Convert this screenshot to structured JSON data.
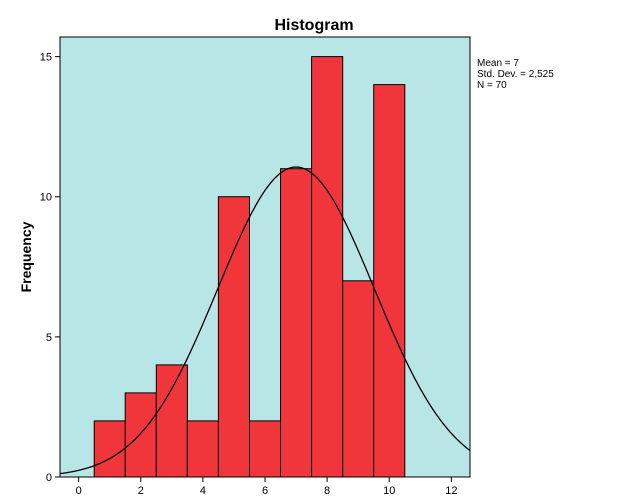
{
  "chart_data": {
    "type": "bar",
    "title": "Histogram",
    "xlabel": "",
    "ylabel": "Frequency",
    "xlim": [
      -0.6,
      12.6
    ],
    "ylim": [
      0,
      15.7
    ],
    "x_ticks": [
      0,
      2,
      4,
      6,
      8,
      10,
      12
    ],
    "y_ticks": [
      0,
      5,
      10,
      15
    ],
    "bins": [
      {
        "start": 0.5,
        "end": 1.5,
        "count": 2
      },
      {
        "start": 1.5,
        "end": 2.5,
        "count": 3
      },
      {
        "start": 2.5,
        "end": 3.5,
        "count": 4
      },
      {
        "start": 3.5,
        "end": 4.5,
        "count": 2
      },
      {
        "start": 4.5,
        "end": 5.5,
        "count": 10
      },
      {
        "start": 5.5,
        "end": 6.5,
        "count": 2
      },
      {
        "start": 6.5,
        "end": 7.5,
        "count": 11
      },
      {
        "start": 7.5,
        "end": 8.5,
        "count": 15
      },
      {
        "start": 8.5,
        "end": 9.5,
        "count": 7
      },
      {
        "start": 9.5,
        "end": 10.5,
        "count": 14
      }
    ],
    "normal_curve": {
      "mean": 7,
      "sd": 2.525,
      "n": 70,
      "bin_width": 1
    },
    "stats": {
      "mean": "Mean = 7",
      "sd": "Std. Dev. = 2,525",
      "n": "N = 70"
    },
    "colors": {
      "plot_background": "#b8e5e5",
      "bar_fill": "#f0353b",
      "bar_stroke": "#000000",
      "curve": "#000000"
    },
    "grid": false,
    "legend": "none"
  }
}
